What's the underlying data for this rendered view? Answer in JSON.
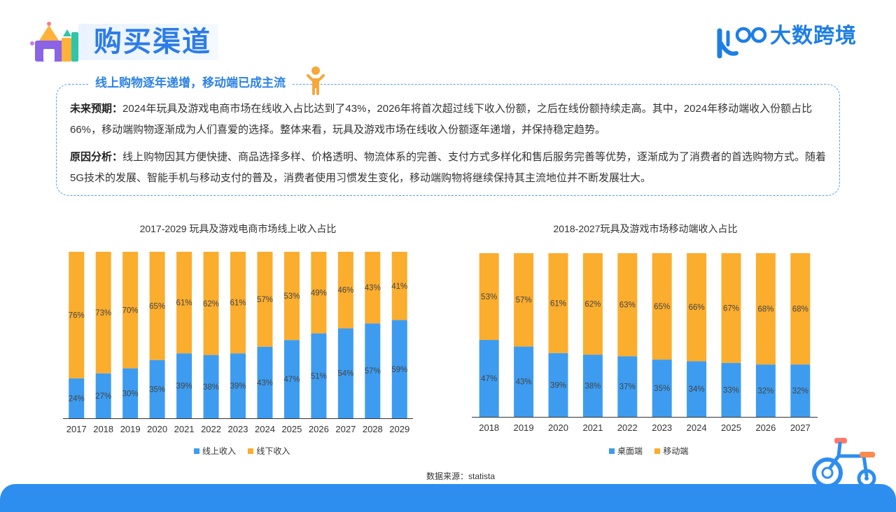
{
  "header": {
    "title": "购买渠道",
    "brand": "大数跨境"
  },
  "summary": {
    "heading": "线上购物逐年递增，移动端已成主流",
    "p1_label": "未来预期：",
    "p1_text": "2024年玩具及游戏电商市场在线收入占比达到了43%，2026年将首次超过线下收入份额，之后在线份额持续走高。其中，2024年移动端收入份额占比66%，移动端购物逐渐成为人们喜爱的选择。整体来看，玩具及游戏市场在线收入份额逐年递增，并保持稳定趋势。",
    "p2_label": "原因分析：",
    "p2_text": "线上购物因其方便快捷、商品选择多样、价格透明、物流体系的完善、支付方式多样化和售后服务完善等优势，逐渐成为了消费者的首选购物方式。随着5G技术的发展、智能手机与移动支付的普及，消费者使用习惯发生变化，移动端购物将继续保持其主流地位并不断发展壮大。"
  },
  "source": "数据来源：statista",
  "colors": {
    "blue": "#3d9cf0",
    "orange": "#fbad2e",
    "accent": "#2c7ce8"
  },
  "chart_data": [
    {
      "type": "bar",
      "stacked": true,
      "title": "2017-2029 玩具及游戏电商市场线上收入占比",
      "categories": [
        "2017",
        "2018",
        "2019",
        "2020",
        "2021",
        "2022",
        "2023",
        "2024",
        "2025",
        "2026",
        "2027",
        "2028",
        "2029"
      ],
      "series": [
        {
          "name": "线上收入",
          "values": [
            24,
            27,
            30,
            35,
            39,
            38,
            39,
            43,
            47,
            51,
            54,
            57,
            59
          ]
        },
        {
          "name": "线下收入",
          "values": [
            76,
            73,
            70,
            65,
            61,
            62,
            61,
            57,
            53,
            49,
            46,
            43,
            41
          ]
        }
      ],
      "ylim": [
        0,
        100
      ],
      "unit": "%",
      "legend": "bottom"
    },
    {
      "type": "bar",
      "stacked": true,
      "title": "2018-2027玩具及游戏市场移动端收入占比",
      "categories": [
        "2018",
        "2019",
        "2020",
        "2021",
        "2022",
        "2023",
        "2024",
        "2025",
        "2026",
        "2027"
      ],
      "series": [
        {
          "name": "桌面端",
          "values": [
            47,
            43,
            39,
            38,
            37,
            35,
            34,
            33,
            32,
            32
          ]
        },
        {
          "name": "移动端",
          "values": [
            53,
            57,
            61,
            62,
            63,
            65,
            66,
            67,
            68,
            68
          ]
        }
      ],
      "ylim": [
        0,
        100
      ],
      "unit": "%",
      "legend": "bottom"
    }
  ]
}
